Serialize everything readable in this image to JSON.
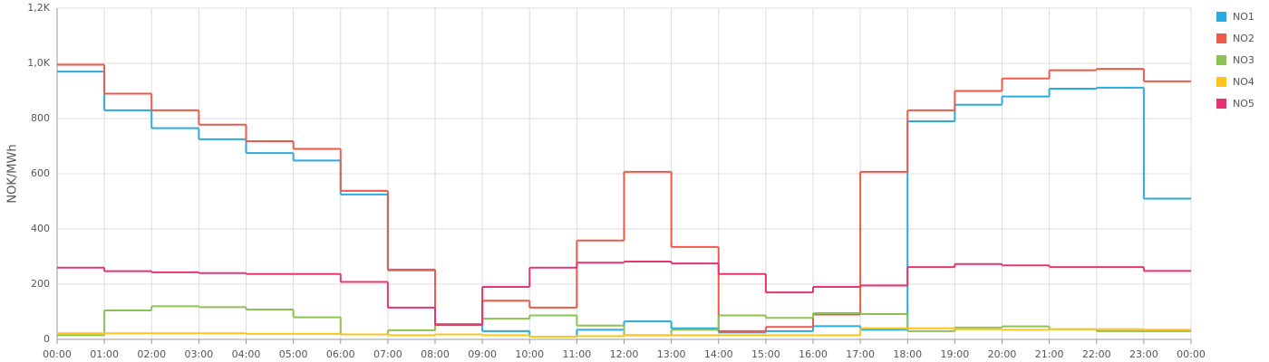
{
  "chart_data": {
    "type": "step",
    "y_label": "NOK/MWh",
    "xticks": [
      "00:00",
      "01:00",
      "02:00",
      "03:00",
      "04:00",
      "05:00",
      "06:00",
      "07:00",
      "08:00",
      "09:00",
      "10:00",
      "11:00",
      "12:00",
      "13:00",
      "14:00",
      "15:00",
      "16:00",
      "17:00",
      "18:00",
      "19:00",
      "20:00",
      "21:00",
      "22:00",
      "23:00",
      "00:00"
    ],
    "ylim": [
      0,
      1200
    ],
    "yticks": [
      0,
      200,
      400,
      600,
      800,
      {
        "value": 1000,
        "label": "1,0K"
      },
      {
        "value": 1200,
        "label": "1,2K"
      }
    ],
    "grid": true,
    "legend": "right",
    "series": [
      {
        "name": "NO1",
        "color": "#29aae1",
        "values": [
          970,
          830,
          765,
          725,
          675,
          648,
          525,
          250,
          55,
          30,
          10,
          35,
          65,
          40,
          25,
          30,
          48,
          35,
          790,
          850,
          880,
          908,
          912,
          510
        ]
      },
      {
        "name": "NO2",
        "color": "#ee5a4a",
        "values": [
          995,
          890,
          830,
          778,
          718,
          690,
          538,
          253,
          55,
          140,
          115,
          358,
          607,
          335,
          30,
          45,
          90,
          607,
          830,
          900,
          945,
          975,
          980,
          935
        ]
      },
      {
        "name": "NO3",
        "color": "#8dc153",
        "values": [
          15,
          105,
          120,
          117,
          108,
          80,
          18,
          33,
          52,
          75,
          87,
          50,
          15,
          35,
          87,
          78,
          95,
          92,
          30,
          43,
          47,
          37,
          30,
          30
        ]
      },
      {
        "name": "NO4",
        "color": "#fcc41d",
        "values": [
          22,
          22,
          22,
          22,
          20,
          20,
          18,
          15,
          18,
          15,
          10,
          12,
          15,
          15,
          15,
          15,
          15,
          40,
          40,
          37,
          35,
          37,
          37,
          35
        ]
      },
      {
        "name": "NO5",
        "color": "#e8336f",
        "values": [
          260,
          247,
          243,
          240,
          237,
          237,
          208,
          115,
          52,
          190,
          260,
          278,
          282,
          275,
          237,
          170,
          190,
          195,
          262,
          273,
          268,
          262,
          262,
          248
        ]
      }
    ]
  }
}
